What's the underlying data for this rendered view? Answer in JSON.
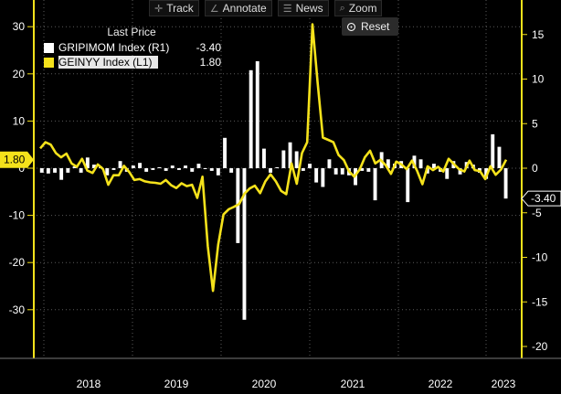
{
  "toolbar": {
    "items": [
      {
        "icon": "crosshair-icon",
        "glyph": "✛",
        "label": "Track"
      },
      {
        "icon": "annotate-icon",
        "glyph": "∠",
        "label": "Annotate"
      },
      {
        "icon": "news-icon",
        "glyph": "☰",
        "label": "News"
      },
      {
        "icon": "zoom-icon",
        "glyph": "⌕",
        "label": "Zoom"
      }
    ],
    "reset_label": "Reset"
  },
  "legend": {
    "title": "Last Price",
    "items": [
      {
        "label": "GRIPIMOM Index  (R1)",
        "value": "-3.40",
        "color": "#ffffff"
      },
      {
        "label": "GEINYY Index  (L1)",
        "value": "1.80",
        "color": "#f5e21b"
      }
    ]
  },
  "chart_data": {
    "type": "bar+line",
    "x_labels": [
      "2018",
      "2019",
      "2020",
      "2021",
      "2022",
      "2023"
    ],
    "left_axis": {
      "ticks": [
        30,
        20,
        10,
        0,
        -10,
        -20,
        -30
      ],
      "ylim": [
        -41,
        35
      ]
    },
    "right_axis": {
      "ticks": [
        15,
        10,
        5,
        0,
        -5,
        -10,
        -15,
        -20
      ],
      "ylim": [
        -21,
        18
      ]
    },
    "last_price_left": "1.80",
    "last_price_right": "-3.40",
    "series": [
      {
        "name": "GRIPIMOM Index (R1)",
        "axis": "right",
        "type": "bar",
        "color": "#ffffff",
        "values": [
          -0.5,
          -0.6,
          -0.5,
          -1.3,
          -0.5,
          0.2,
          -0.5,
          1.2,
          0.4,
          0.2,
          -0.8,
          -0.2,
          0.8,
          -0.4,
          0.3,
          0.6,
          -0.4,
          -0.2,
          0.1,
          -0.3,
          0.3,
          -0.2,
          0.3,
          -0.4,
          0.5,
          -0.1,
          -0.3,
          -0.8,
          3.4,
          -0.5,
          -8.4,
          -17.0,
          11.0,
          12.0,
          2.2,
          -0.5,
          0.1,
          2.0,
          2.9,
          1.9,
          -0.3,
          0.5,
          -1.6,
          -2.1,
          1.0,
          -0.7,
          -0.7,
          -0.8,
          -1.9,
          -0.3,
          -0.4,
          -3.6,
          1.8,
          1.0,
          0.5,
          0.8,
          -3.8,
          1.4,
          1.0,
          -0.6,
          0.5,
          -0.4,
          -1.2,
          0.8,
          -0.7,
          0.7,
          0.4,
          -0.5,
          -1.2,
          3.8,
          2.4,
          -3.4
        ]
      },
      {
        "name": "GEINYY Index (L1)",
        "axis": "left",
        "type": "line",
        "color": "#f5e21b",
        "values": [
          4.2,
          5.5,
          5.0,
          3.2,
          2.3,
          3.1,
          1.0,
          0.3,
          2.0,
          -0.5,
          -1.0,
          0.8,
          -0.2,
          -3.5,
          -1.5,
          -1.5,
          0.5,
          -0.8,
          -2.5,
          -2.3,
          -2.8,
          -3.0,
          -3.1,
          -3.3,
          -2.5,
          -3.6,
          -4.2,
          -3.2,
          -3.8,
          -3.5,
          -6.3,
          -1.8,
          -16.5,
          -26.0,
          -16.2,
          -9.8,
          -8.7,
          -8.2,
          -7.6,
          -5.4,
          -4.3,
          -3.7,
          -5.3,
          -2.8,
          -1.3,
          -2.8,
          -4.8,
          -5.5,
          1.0,
          -3.3,
          3.2,
          5.5,
          30.5,
          18.0,
          6.5,
          6.0,
          5.5,
          2.8,
          1.7,
          -0.7,
          -1.8,
          -0.3,
          2.3,
          3.7,
          1.0,
          1.8,
          0.6,
          -1.2,
          1.4,
          0.8,
          -0.2,
          1.6,
          -0.6,
          -3.4,
          0.4,
          -0.4,
          0.3,
          -0.7,
          2.0,
          0.9,
          -0.2,
          -0.7,
          1.6,
          -0.4,
          -0.6,
          -2.3,
          0.4,
          -1.4,
          -0.3,
          1.8
        ]
      }
    ]
  }
}
